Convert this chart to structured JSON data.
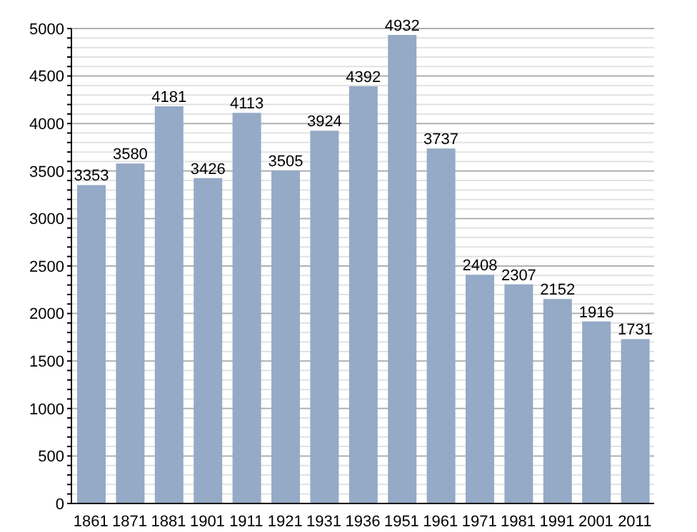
{
  "chart_data": {
    "type": "bar",
    "categories": [
      "1861",
      "1871",
      "1881",
      "1901",
      "1911",
      "1921",
      "1931",
      "1936",
      "1951",
      "1961",
      "1971",
      "1981",
      "1991",
      "2001",
      "2011"
    ],
    "values": [
      3353,
      3580,
      4181,
      3426,
      4113,
      3505,
      3924,
      4392,
      4932,
      3737,
      2408,
      2307,
      2152,
      1916,
      1731
    ],
    "color": "#94aac6",
    "data_labels": true,
    "ylim": [
      0,
      5000
    ],
    "yticks": [
      0,
      {
        "value": 100,
        "label": null
      },
      {
        "value": 200,
        "label": null
      },
      {
        "value": 300,
        "label": null
      },
      {
        "value": 400,
        "label": null
      },
      500,
      {
        "value": 600,
        "label": null
      },
      {
        "value": 700,
        "label": null
      },
      {
        "value": 800,
        "label": null
      },
      {
        "value": 900,
        "label": null
      },
      1000,
      {
        "value": 1100,
        "label": null
      },
      {
        "value": 1200,
        "label": null
      },
      {
        "value": 1300,
        "label": null
      },
      {
        "value": 1400,
        "label": null
      },
      1500,
      {
        "value": 1600,
        "label": null
      },
      {
        "value": 1700,
        "label": null
      },
      {
        "value": 1800,
        "label": null
      },
      {
        "value": 1900,
        "label": null
      },
      2000,
      {
        "value": 2100,
        "label": null
      },
      {
        "value": 2200,
        "label": null
      },
      {
        "value": 2300,
        "label": null
      },
      {
        "value": 2400,
        "label": null
      },
      2500,
      {
        "value": 2600,
        "label": null
      },
      {
        "value": 2700,
        "label": null
      },
      {
        "value": 2800,
        "label": null
      },
      {
        "value": 2900,
        "label": null
      },
      3000,
      {
        "value": 3100,
        "label": null
      },
      {
        "value": 3200,
        "label": null
      },
      {
        "value": 3300,
        "label": null
      },
      {
        "value": 3400,
        "label": null
      },
      3500,
      {
        "value": 3600,
        "label": null
      },
      {
        "value": 3700,
        "label": null
      },
      {
        "value": 3800,
        "label": null
      },
      {
        "value": 3900,
        "label": null
      },
      4000,
      {
        "value": 4100,
        "label": null
      },
      {
        "value": 4200,
        "label": null
      },
      {
        "value": 4300,
        "label": null
      },
      {
        "value": 4400,
        "label": null
      },
      4500,
      {
        "value": 4600,
        "label": null
      },
      {
        "value": 4700,
        "label": null
      },
      {
        "value": 4800,
        "label": null
      },
      {
        "value": 4900,
        "label": null
      },
      5000
    ],
    "grid": "y",
    "legend": false
  }
}
